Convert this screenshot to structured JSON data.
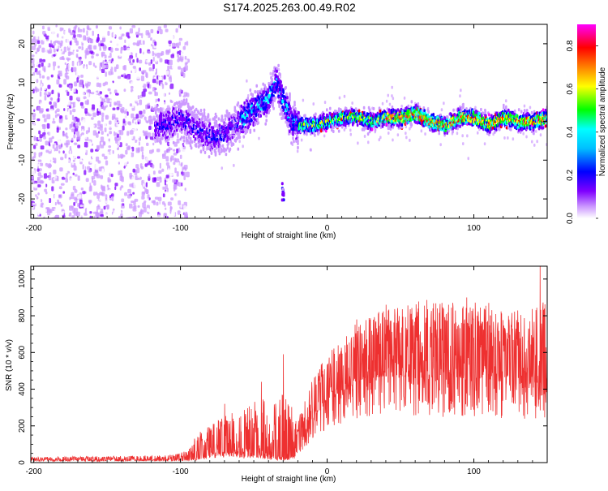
{
  "page_title": "S174.2025.263.00.49.R02",
  "chart_data": [
    {
      "type": "heatmap",
      "title": "S174.2025.263.00.49.R02",
      "xlabel": "Height of straight line (km)",
      "ylabel": "Frequency (Hz)",
      "xlim": [
        -202,
        150
      ],
      "ylim": [
        -25,
        25
      ],
      "x_ticks": [
        -200,
        -100,
        0,
        100
      ],
      "y_ticks": [
        -20,
        -10,
        0,
        10,
        20
      ],
      "colorbar": {
        "label": "Normalized spectral amplitude",
        "range": [
          0,
          0.9
        ],
        "ticks": [
          0.0,
          0.2,
          0.4,
          0.6,
          0.8
        ],
        "colors": [
          "#ffffff",
          "#cc99ff",
          "#7f00ff",
          "#0000ff",
          "#00ffff",
          "#00ff00",
          "#ffff00",
          "#ff8000",
          "#ff0000",
          "#ff00ff"
        ]
      },
      "features": {
        "noise_region_x": [
          -202,
          -100
        ],
        "signal_ridge": {
          "x": [
            -110,
            -100,
            -90,
            -80,
            -70,
            -60,
            -50,
            -40,
            -35,
            -30,
            -25,
            -20,
            -10,
            0,
            10,
            20,
            30,
            40,
            50,
            60,
            70,
            80,
            90,
            100,
            110,
            120,
            130,
            140,
            150
          ],
          "y": [
            -1,
            1,
            -2,
            -4,
            -3,
            0,
            3,
            6,
            10,
            5,
            0,
            -1,
            -1,
            0,
            1,
            1,
            0,
            1,
            1,
            2,
            0,
            -1,
            1,
            1,
            -1,
            1,
            0,
            0,
            1
          ]
        },
        "isolated_blob": {
          "x": -31,
          "y": -18
        }
      }
    },
    {
      "type": "line",
      "xlabel": "Height of straight line (km)",
      "ylabel": "SNR (10 * v/v)",
      "xlim": [
        -202,
        150
      ],
      "ylim": [
        0,
        1070
      ],
      "x_ticks": [
        -200,
        -100,
        0,
        100
      ],
      "y_ticks": [
        0,
        200,
        400,
        600,
        800,
        1000
      ],
      "color": "#ee3030",
      "envelope": {
        "x": [
          -202,
          -150,
          -110,
          -100,
          -95,
          -90,
          -80,
          -70,
          -60,
          -50,
          -40,
          -30,
          -25,
          -20,
          -10,
          -5,
          0,
          10,
          20,
          30,
          40,
          50,
          60,
          70,
          80,
          90,
          100,
          110,
          120,
          130,
          140,
          150
        ],
        "baseline": [
          12,
          12,
          13,
          14,
          16,
          22,
          40,
          50,
          45,
          45,
          30,
          20,
          25,
          55,
          220,
          280,
          340,
          390,
          430,
          460,
          470,
          470,
          460,
          450,
          450,
          460,
          460,
          450,
          440,
          430,
          430,
          440
        ],
        "upper": [
          30,
          35,
          40,
          50,
          80,
          150,
          200,
          250,
          300,
          330,
          370,
          380,
          330,
          250,
          450,
          520,
          600,
          680,
          760,
          800,
          830,
          850,
          880,
          900,
          880,
          870,
          880,
          860,
          830,
          830,
          860,
          900
        ]
      },
      "peaks": [
        {
          "x": 145,
          "y": 1070
        },
        {
          "x": 148,
          "y": 840
        },
        {
          "x": 110,
          "y": 870
        },
        {
          "x": 95,
          "y": 900
        },
        {
          "x": 75,
          "y": 840
        },
        {
          "x": 60,
          "y": 790
        },
        {
          "x": 40,
          "y": 860
        },
        {
          "x": 35,
          "y": 820
        },
        {
          "x": 20,
          "y": 780
        },
        {
          "x": -30,
          "y": 590
        },
        {
          "x": -45,
          "y": 440
        },
        {
          "x": -70,
          "y": 320
        }
      ]
    }
  ]
}
